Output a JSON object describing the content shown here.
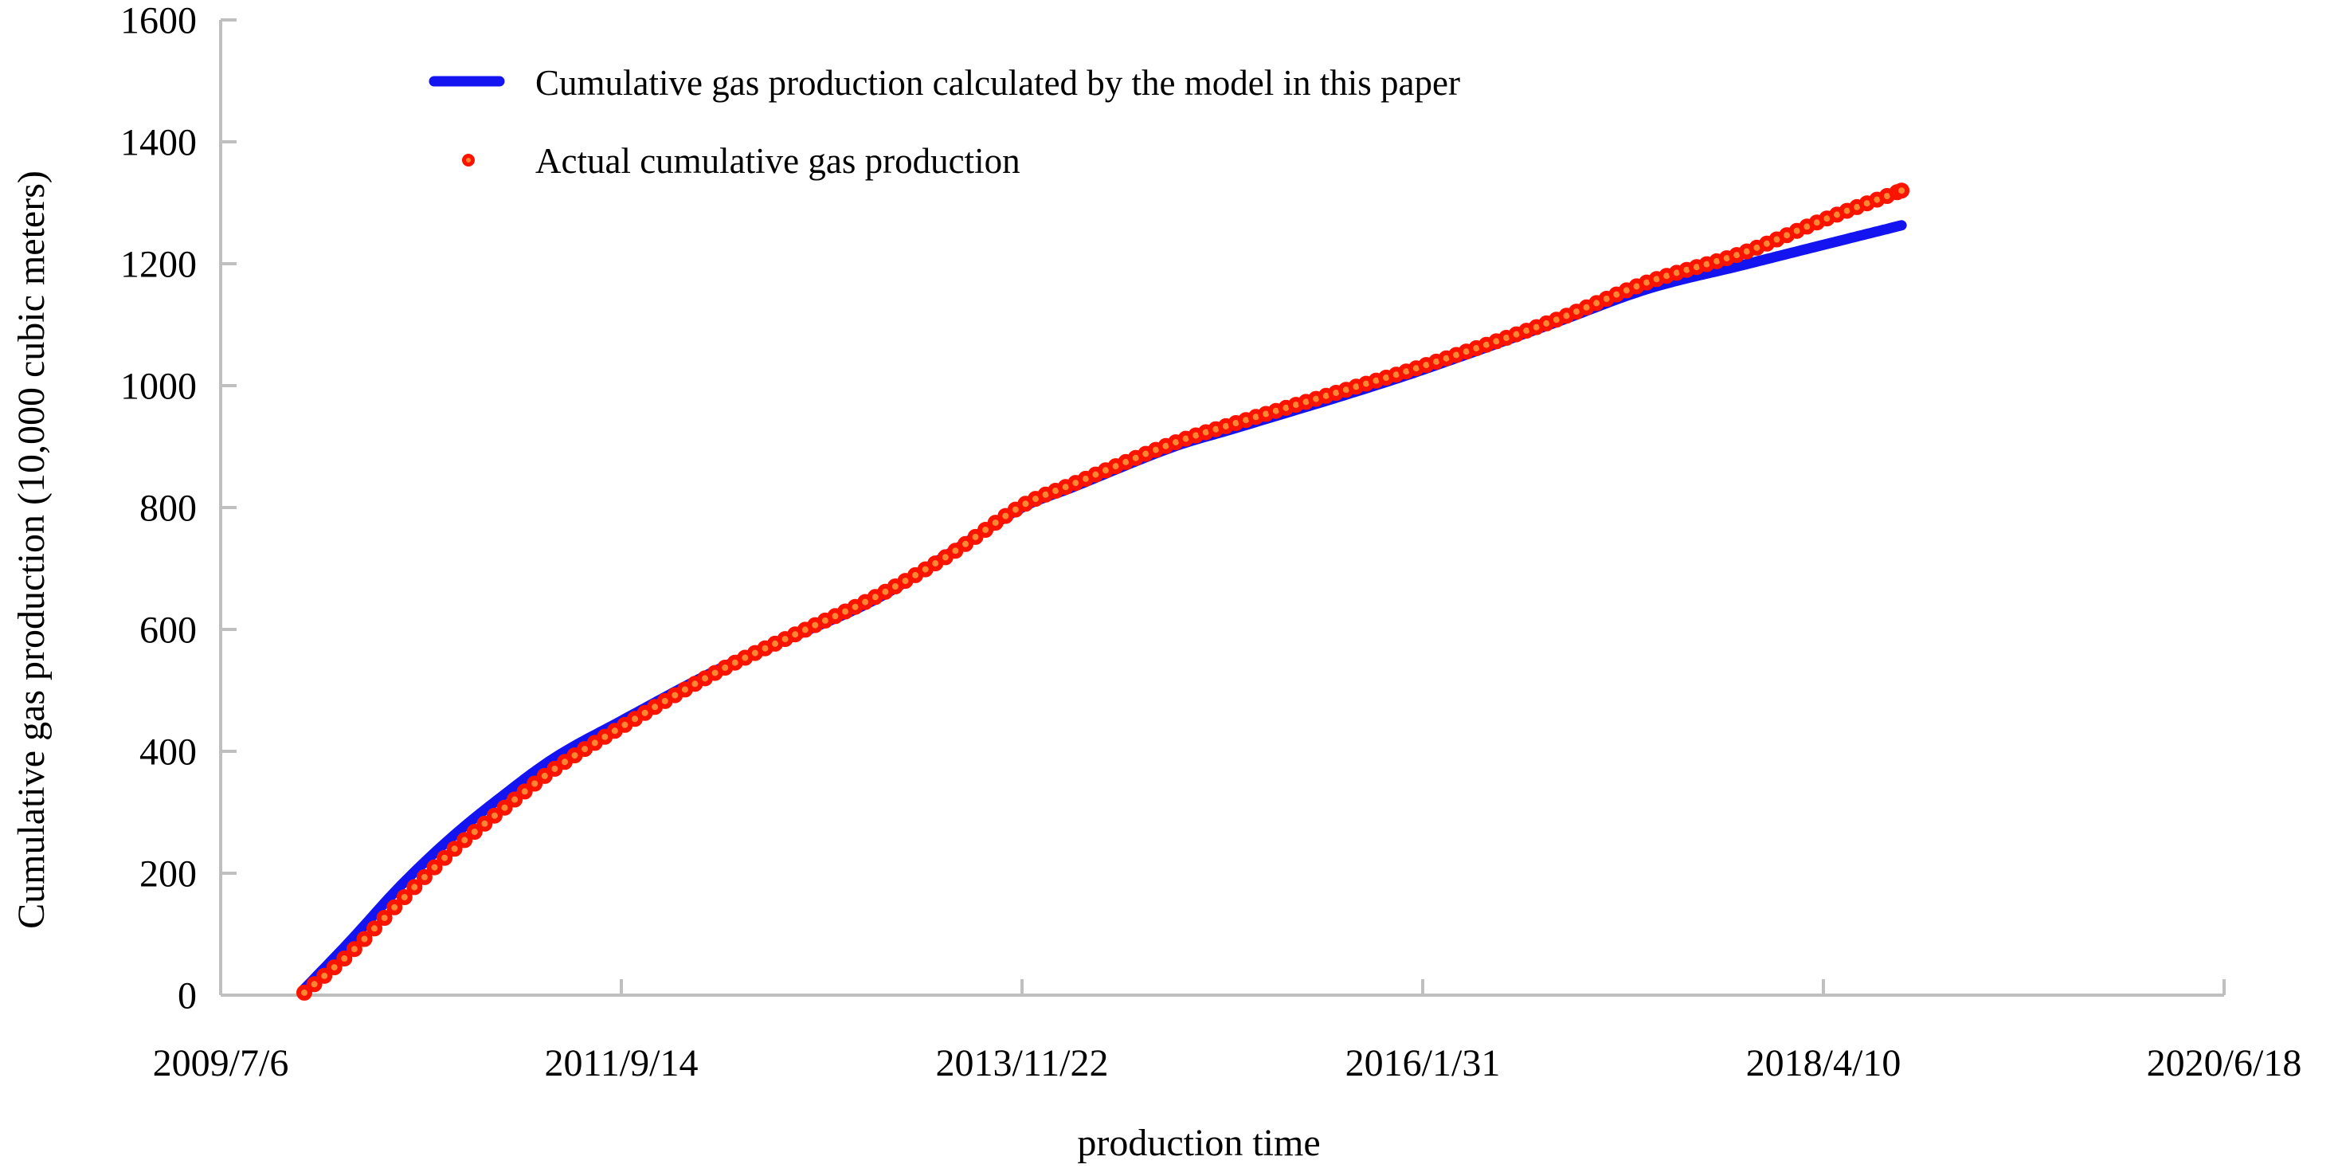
{
  "chart_data": {
    "type": "line+scatter",
    "title": "",
    "xlabel": "production time",
    "ylabel": "Cumulative gas production (10,000 cubic meters)",
    "x_axis": {
      "start_date": "2009/7/6",
      "tick_interval_days": 800,
      "tick_labels": [
        "2009/7/6",
        "2011/9/14",
        "2013/11/22",
        "2016/1/31",
        "2018/4/10",
        "2020/6/18"
      ],
      "range_days": [
        0,
        4000
      ]
    },
    "y_axis": {
      "min": 0,
      "max": 1600,
      "step": 200,
      "tick_labels": [
        "0",
        "200",
        "400",
        "600",
        "800",
        "1000",
        "1200",
        "1400",
        "1600"
      ]
    },
    "grid": false,
    "legend_position": "top-left-inside",
    "axis_color": "#bfbfbf",
    "points_format": "[days_since_2009/7/6, cumulative_production_10k_m3]",
    "series": [
      {
        "name": "model",
        "label": "Cumulative gas production calculated by the model in this paper",
        "type": "line",
        "color": "#1414f0",
        "line_width": 13,
        "points": [
          [
            167,
            10
          ],
          [
            260,
            90
          ],
          [
            360,
            180
          ],
          [
            460,
            258
          ],
          [
            560,
            325
          ],
          [
            668,
            390
          ],
          [
            800,
            450
          ],
          [
            990,
            533
          ],
          [
            1150,
            591
          ],
          [
            1309,
            650
          ],
          [
            1450,
            722
          ],
          [
            1600,
            800
          ],
          [
            1700,
            833
          ],
          [
            1900,
            899
          ],
          [
            2025,
            930
          ],
          [
            2250,
            986
          ],
          [
            2400,
            1026
          ],
          [
            2660,
            1102
          ],
          [
            2850,
            1159
          ],
          [
            3040,
            1198
          ],
          [
            3200,
            1231
          ],
          [
            3356,
            1263
          ]
        ]
      },
      {
        "name": "actual",
        "label": "Actual cumulative gas production",
        "type": "scatter",
        "edge_color": "#fa1400",
        "face_color": "#ff8633",
        "marker_outer_px": 20,
        "marker_spacing_days": 20,
        "points": [
          [
            167,
            4
          ],
          [
            260,
            70
          ],
          [
            360,
            155
          ],
          [
            460,
            235
          ],
          [
            560,
            303
          ],
          [
            668,
            372
          ],
          [
            800,
            440
          ],
          [
            990,
            530
          ],
          [
            1150,
            593
          ],
          [
            1309,
            654
          ],
          [
            1450,
            720
          ],
          [
            1600,
            803
          ],
          [
            1700,
            838
          ],
          [
            1900,
            905
          ],
          [
            2025,
            938
          ],
          [
            2250,
            994
          ],
          [
            2400,
            1032
          ],
          [
            2660,
            1106
          ],
          [
            2850,
            1170
          ],
          [
            3040,
            1218
          ],
          [
            3200,
            1272
          ],
          [
            3356,
            1320
          ]
        ]
      }
    ]
  }
}
